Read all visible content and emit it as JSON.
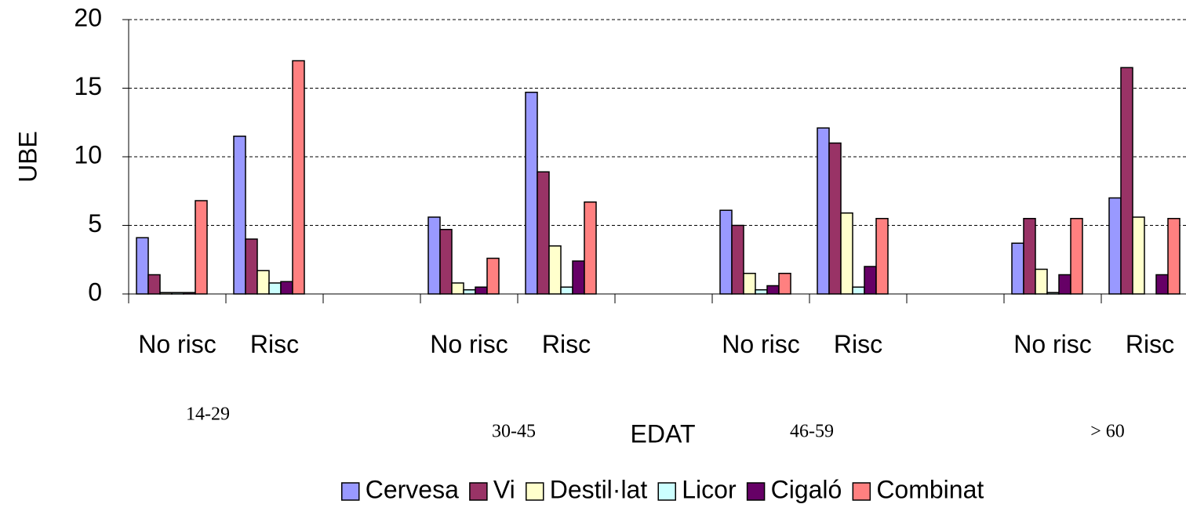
{
  "chart_data": {
    "type": "bar",
    "y_label": "UBE",
    "x_label": "EDAT",
    "categories": [
      "No risc",
      "Risc",
      null,
      "No risc",
      "Risc",
      null,
      "No risc",
      "Risc",
      null,
      "No risc",
      "Risc"
    ],
    "group_labels": [
      "14-29",
      "30-45",
      "46-59",
      "> 60"
    ],
    "series": [
      {
        "name": "Cervesa",
        "color": "#9999ff",
        "values": [
          4.1,
          11.5,
          null,
          5.6,
          14.7,
          null,
          6.1,
          12.1,
          null,
          3.7,
          7.0
        ]
      },
      {
        "name": "Vi",
        "color": "#993366",
        "values": [
          1.4,
          4.0,
          null,
          4.7,
          8.9,
          null,
          5.0,
          11.0,
          null,
          5.5,
          16.5
        ]
      },
      {
        "name": "Destil·lat",
        "color": "#ffffcc",
        "values": [
          0.1,
          1.7,
          null,
          0.8,
          3.5,
          null,
          1.5,
          5.9,
          null,
          1.8,
          5.6
        ]
      },
      {
        "name": "Licor",
        "color": "#ccffff",
        "values": [
          0.1,
          0.8,
          null,
          0.3,
          0.5,
          null,
          0.3,
          0.5,
          null,
          0.1,
          0
        ]
      },
      {
        "name": "Cigaló",
        "color": "#660066",
        "values": [
          0.1,
          0.9,
          null,
          0.5,
          2.4,
          null,
          0.6,
          2.0,
          null,
          1.4,
          1.4
        ]
      },
      {
        "name": "Combinat",
        "color": "#ff8080",
        "values": [
          6.8,
          17.0,
          null,
          2.6,
          6.7,
          null,
          1.5,
          5.5,
          null,
          5.5,
          5.5
        ]
      }
    ],
    "ylim": [
      0,
      20
    ],
    "yticks": [
      0,
      5,
      10,
      15,
      20
    ],
    "grid": true,
    "legend": "bottom"
  }
}
